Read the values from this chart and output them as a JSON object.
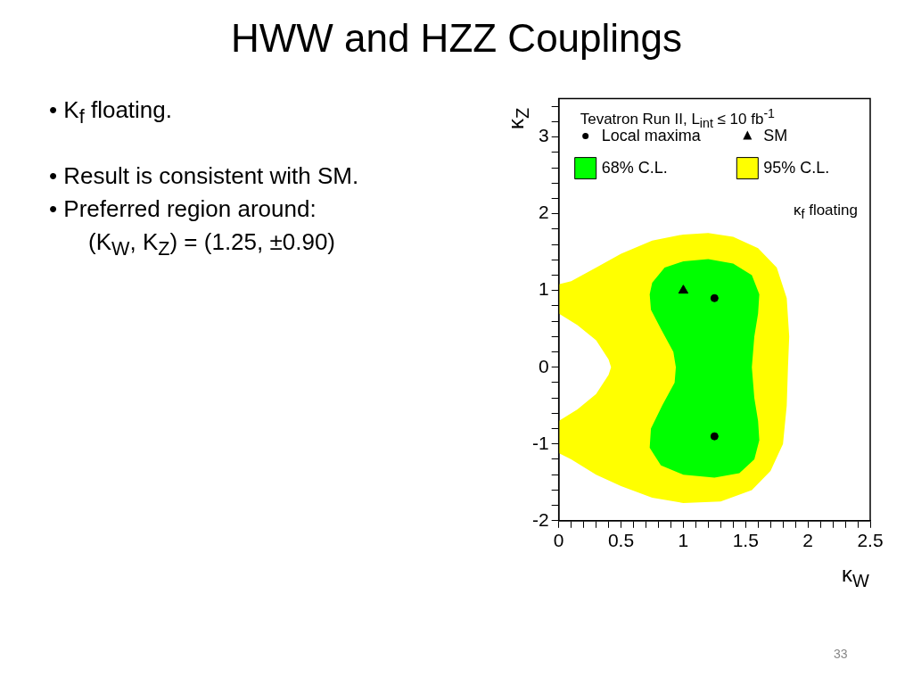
{
  "chart_data": {
    "type": "scatter",
    "title": "HWW and HZZ Couplings",
    "xlabel": "κ$_{W}$",
    "ylabel": "κ$_{Z}$",
    "annotations": [
      "Tevatron Run II, L$_{int}$ ≤ 10 fb$^{-1}$",
      "κ$_{f}$ floating",
      "• K$_{f}$ floating.",
      "• Result is consistent with SM.",
      "• Preferred region around:",
      "(K$_{W}$, K$_{Z}$) = (1.25, ±0.90)",
      "33"
    ],
    "xlim": [
      0,
      2.5
    ],
    "ylim": [
      -2,
      3.5
    ],
    "xticks": [
      0,
      {
        "value": 0.1,
        "label": null
      },
      {
        "value": 0.2,
        "label": null
      },
      {
        "value": 0.3,
        "label": null
      },
      {
        "value": 0.4,
        "label": null
      },
      0.5,
      {
        "value": 0.6,
        "label": null
      },
      {
        "value": 0.7,
        "label": null
      },
      {
        "value": 0.8,
        "label": null
      },
      {
        "value": 0.9,
        "label": null
      },
      1,
      {
        "value": 1.1,
        "label": null
      },
      {
        "value": 1.2,
        "label": null
      },
      {
        "value": 1.3,
        "label": null
      },
      {
        "value": 1.4,
        "label": null
      },
      1.5,
      {
        "value": 1.6,
        "label": null
      },
      {
        "value": 1.7,
        "label": null
      },
      {
        "value": 1.8,
        "label": null
      },
      {
        "value": 1.9,
        "label": null
      },
      2,
      {
        "value": 2.1,
        "label": null
      },
      {
        "value": 2.2,
        "label": null
      },
      {
        "value": 2.3,
        "label": null
      },
      {
        "value": 2.4,
        "label": null
      },
      2.5
    ],
    "yticks": [
      -2,
      {
        "value": -1.8,
        "label": null
      },
      {
        "value": -1.6,
        "label": null
      },
      {
        "value": -1.4,
        "label": null
      },
      {
        "value": -1.2,
        "label": null
      },
      -1,
      {
        "value": -0.8,
        "label": null
      },
      {
        "value": -0.6,
        "label": null
      },
      {
        "value": -0.4,
        "label": null
      },
      {
        "value": -0.2,
        "label": null
      },
      0,
      {
        "value": 0.2,
        "label": null
      },
      {
        "value": 0.4,
        "label": null
      },
      {
        "value": 0.6,
        "label": null
      },
      {
        "value": 0.8,
        "label": null
      },
      1,
      {
        "value": 1.2,
        "label": null
      },
      {
        "value": 1.4,
        "label": null
      },
      {
        "value": 1.6,
        "label": null
      },
      {
        "value": 1.8,
        "label": null
      },
      2,
      {
        "value": 2.2,
        "label": null
      },
      {
        "value": 2.4,
        "label": null
      },
      {
        "value": 2.6,
        "label": null
      },
      {
        "value": 2.8,
        "label": null
      },
      3,
      {
        "value": 3.2,
        "label": null
      },
      {
        "value": 3.4,
        "label": null
      }
    ],
    "grid": false,
    "legend": "top",
    "series": [
      {
        "name": "Local maxima",
        "marker": "circle",
        "color": "#000000",
        "x": [
          1.25,
          1.25
        ],
        "values": [
          0.9,
          -0.9
        ]
      },
      {
        "name": "SM",
        "marker": "triangle",
        "color": "#000000",
        "x": [
          1.0
        ],
        "values": [
          1.0
        ]
      },
      {
        "name": "68% C.L.",
        "type": "area",
        "color": "#00ff00",
        "x": [
          0.75,
          0.85,
          1.0,
          1.2,
          1.4,
          1.55,
          1.61,
          1.6,
          1.57,
          1.55,
          1.57,
          1.6,
          1.61,
          1.57,
          1.45,
          1.25,
          1.0,
          0.82,
          0.73,
          0.74,
          0.83,
          0.93,
          0.94,
          0.92,
          0.82,
          0.74,
          0.73,
          0.75
        ],
        "values": [
          1.1,
          1.3,
          1.38,
          1.41,
          1.35,
          1.2,
          0.95,
          0.7,
          0.4,
          0,
          -0.4,
          -0.7,
          -0.95,
          -1.2,
          -1.38,
          -1.44,
          -1.4,
          -1.28,
          -1.05,
          -0.8,
          -0.5,
          -0.2,
          0,
          0.2,
          0.5,
          0.75,
          0.95,
          1.1
        ]
      },
      {
        "name": "95% C.L.",
        "type": "area",
        "color": "#ffff00",
        "x": [
          0,
          0.1,
          0.3,
          0.5,
          0.75,
          1.0,
          1.2,
          1.4,
          1.6,
          1.75,
          1.83,
          1.85,
          1.84,
          1.83,
          1.8,
          1.7,
          1.55,
          1.3,
          1.0,
          0.75,
          0.5,
          0.3,
          0.1,
          0,
          0,
          0.15,
          0.3,
          0.4,
          0.42,
          0.4,
          0.3,
          0.15,
          0,
          0
        ],
        "values": [
          1.08,
          1.12,
          1.3,
          1.48,
          1.65,
          1.73,
          1.75,
          1.7,
          1.55,
          1.3,
          0.9,
          0.4,
          0,
          -0.5,
          -1.0,
          -1.35,
          -1.6,
          -1.75,
          -1.77,
          -1.7,
          -1.55,
          -1.4,
          -1.2,
          -1.12,
          -0.7,
          -0.55,
          -0.35,
          -0.1,
          0,
          0.1,
          0.35,
          0.55,
          0.7,
          1.08
        ]
      }
    ]
  }
}
